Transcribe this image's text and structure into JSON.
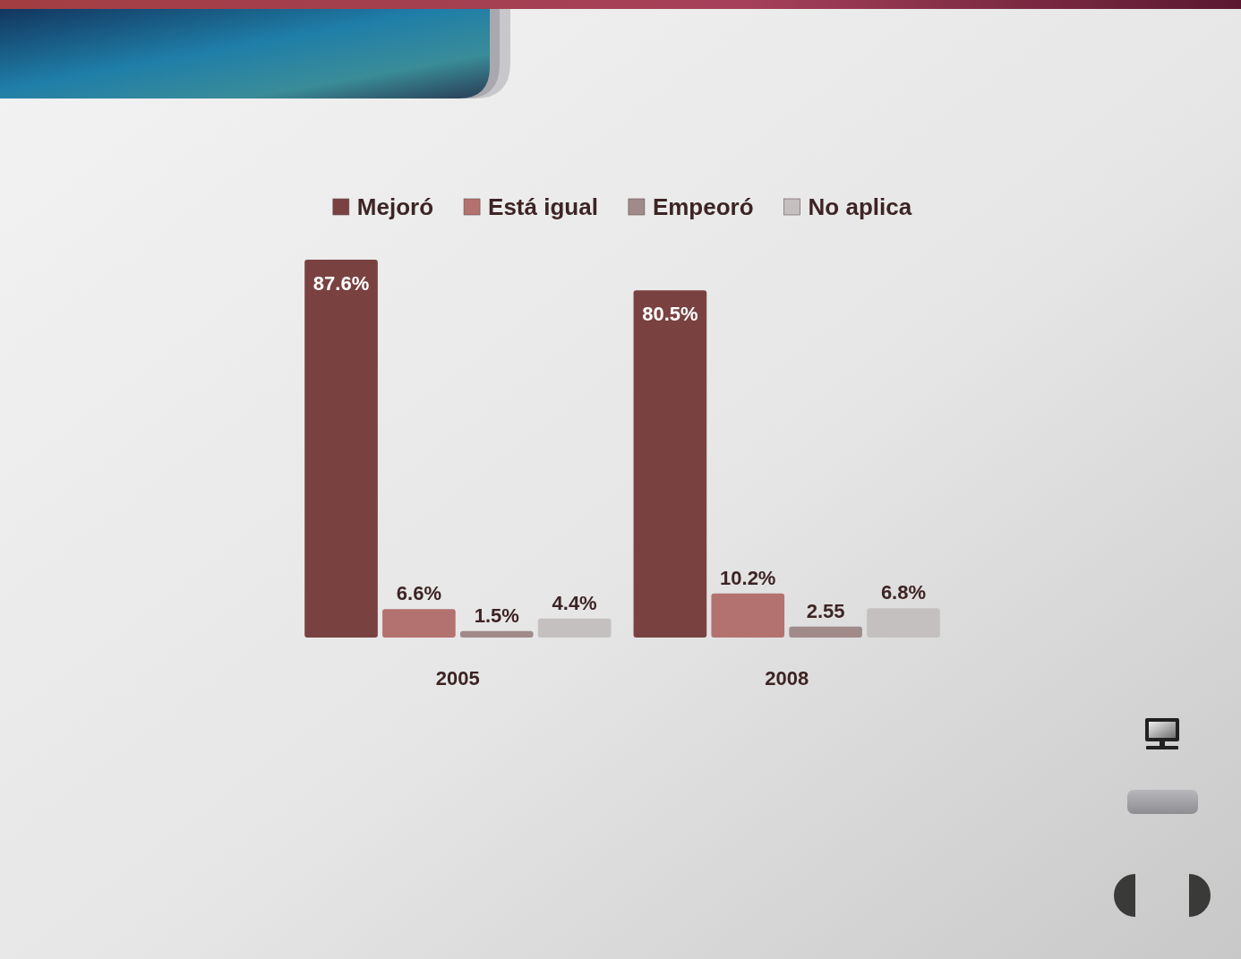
{
  "chart_data": {
    "type": "bar",
    "categories": [
      "2005",
      "2008"
    ],
    "series": [
      {
        "name": "Mejoró",
        "color": "#7a4141",
        "values": [
          87.6,
          80.5
        ],
        "value_labels": [
          "87.6%",
          "80.5%"
        ]
      },
      {
        "name": "Está igual",
        "color": "#b3726f",
        "values": [
          6.6,
          10.2
        ],
        "value_labels": [
          "6.6%",
          "10.2%"
        ]
      },
      {
        "name": "Empeoró",
        "color": "#a08a8a",
        "values": [
          1.5,
          2.55
        ],
        "value_labels": [
          "1.5%",
          "2.55"
        ]
      },
      {
        "name": "No aplica",
        "color": "#c4c0c0",
        "values": [
          4.4,
          6.8
        ],
        "value_labels": [
          "4.4%",
          "6.8%"
        ]
      }
    ],
    "legend": "top"
  }
}
